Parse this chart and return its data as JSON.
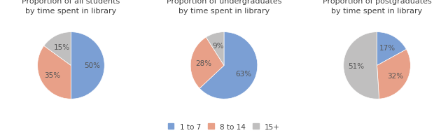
{
  "charts": [
    {
      "title": "Proportion of all students\nby time spent in library",
      "values": [
        50,
        35,
        15
      ],
      "startangle": 90
    },
    {
      "title": "Proportion of undergraduates\nby time spent in library",
      "values": [
        63,
        28,
        9
      ],
      "startangle": 90
    },
    {
      "title": "Proportion of postgraduates\nby time spent in library",
      "values": [
        17,
        32,
        51
      ],
      "startangle": 90
    }
  ],
  "colors": [
    "#7b9fd4",
    "#e8a088",
    "#c0bfbf"
  ],
  "legend_labels": [
    "1 to 7",
    "8 to 14",
    "15+"
  ],
  "label_fontsize": 7.5,
  "title_fontsize": 8,
  "background_color": "#ffffff",
  "legend_fontsize": 7.5
}
